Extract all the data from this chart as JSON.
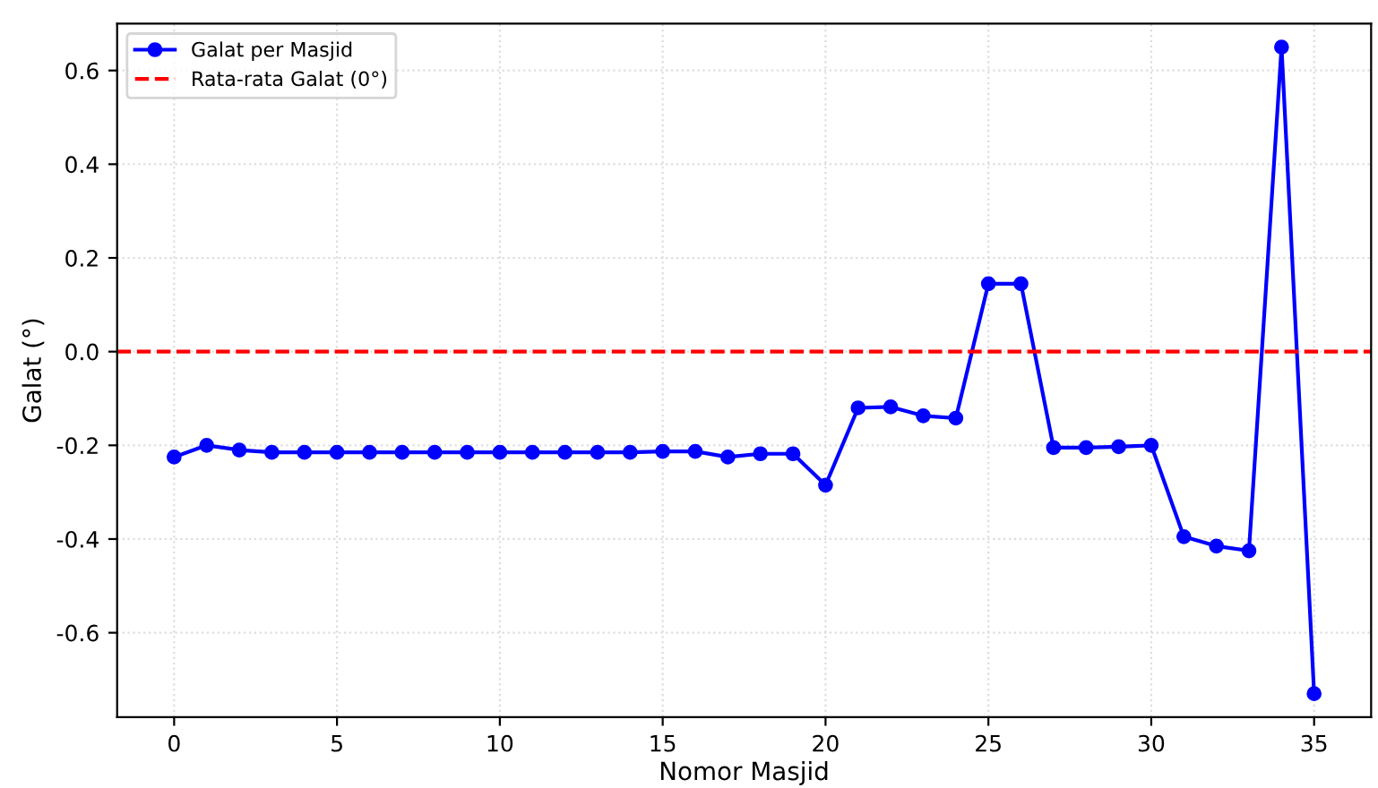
{
  "chart_data": {
    "type": "line",
    "xlabel": "Nomor Masjid",
    "ylabel": "Galat (°)",
    "x": [
      0,
      1,
      2,
      3,
      4,
      5,
      6,
      7,
      8,
      9,
      10,
      11,
      12,
      13,
      14,
      15,
      16,
      17,
      18,
      19,
      20,
      21,
      22,
      23,
      24,
      25,
      26,
      27,
      28,
      29,
      30,
      31,
      32,
      33,
      34,
      35
    ],
    "series": [
      {
        "name": "Galat per Masjid",
        "color": "#0000ff",
        "values": [
          -0.225,
          -0.2,
          -0.21,
          -0.215,
          -0.215,
          -0.215,
          -0.215,
          -0.215,
          -0.215,
          -0.215,
          -0.215,
          -0.215,
          -0.215,
          -0.215,
          -0.215,
          -0.213,
          -0.213,
          -0.225,
          -0.218,
          -0.218,
          -0.285,
          -0.12,
          -0.118,
          -0.137,
          -0.142,
          0.145,
          0.145,
          -0.205,
          -0.205,
          -0.203,
          -0.2,
          -0.395,
          -0.415,
          -0.425,
          0.65,
          -0.73
        ]
      }
    ],
    "ref_lines": [
      {
        "axis": "y",
        "value": 0,
        "label": "Rata-rata Galat (0°)",
        "color": "#ff0000",
        "line_style": "dashed"
      }
    ],
    "xlim": [
      -1.75,
      36.75
    ],
    "ylim": [
      -0.78,
      0.7
    ],
    "xticks": [
      0,
      5,
      10,
      15,
      20,
      25,
      30,
      35
    ],
    "yticks": [
      -0.6,
      -0.4,
      -0.2,
      {
        "value": 0,
        "label": "0.0"
      },
      0.2,
      0.4,
      0.6
    ],
    "grid": true,
    "legend": "top left",
    "marker": "circle",
    "line_style": "solid"
  }
}
